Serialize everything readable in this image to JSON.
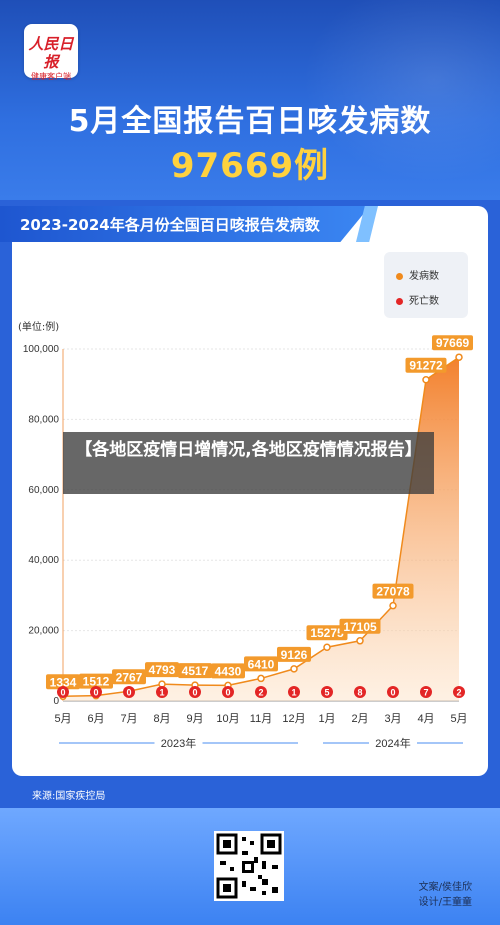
{
  "header": {
    "logo_line1": "人民日报",
    "logo_line2": "健康客户端",
    "title": "5月全国报告百日咳发病数",
    "highlight": "97669例"
  },
  "card": {
    "title": "2023-2024年各月份全国百日咳报告发病数",
    "unit": "(单位:例)"
  },
  "banner": {
    "text": "【各地区疫情日增情况,各地区疫情情况报告】"
  },
  "colors": {
    "cases": "#f08a1c",
    "deaths": "#e32626",
    "axis_year_line": "#4a8ef0"
  },
  "chart_data": {
    "type": "area",
    "categories": [
      "5月",
      "6月",
      "7月",
      "8月",
      "9月",
      "10月",
      "11月",
      "12月",
      "1月",
      "2月",
      "3月",
      "4月",
      "5月"
    ],
    "series": [
      {
        "name": "发病数",
        "values": [
          1334,
          1512,
          2767,
          4793,
          4517,
          4430,
          6410,
          9126,
          15275,
          17105,
          27078,
          91272,
          97669
        ]
      },
      {
        "name": "死亡数",
        "values": [
          0,
          0,
          0,
          1,
          0,
          0,
          2,
          1,
          5,
          8,
          0,
          7,
          2
        ]
      }
    ],
    "yticks": [
      "0",
      "20,000",
      "40,000",
      "60,000",
      "80,000",
      "100,000"
    ],
    "ylim": [
      0,
      100000
    ],
    "year_groups": [
      {
        "label": "2023年",
        "from": 0,
        "to": 7
      },
      {
        "label": "2024年",
        "from": 8,
        "to": 12
      }
    ],
    "legend_position": "top-right"
  },
  "footer": {
    "source": "来源:国家疾控局",
    "editor": "文案/侯佳欣",
    "designer": "设计/王童童"
  }
}
